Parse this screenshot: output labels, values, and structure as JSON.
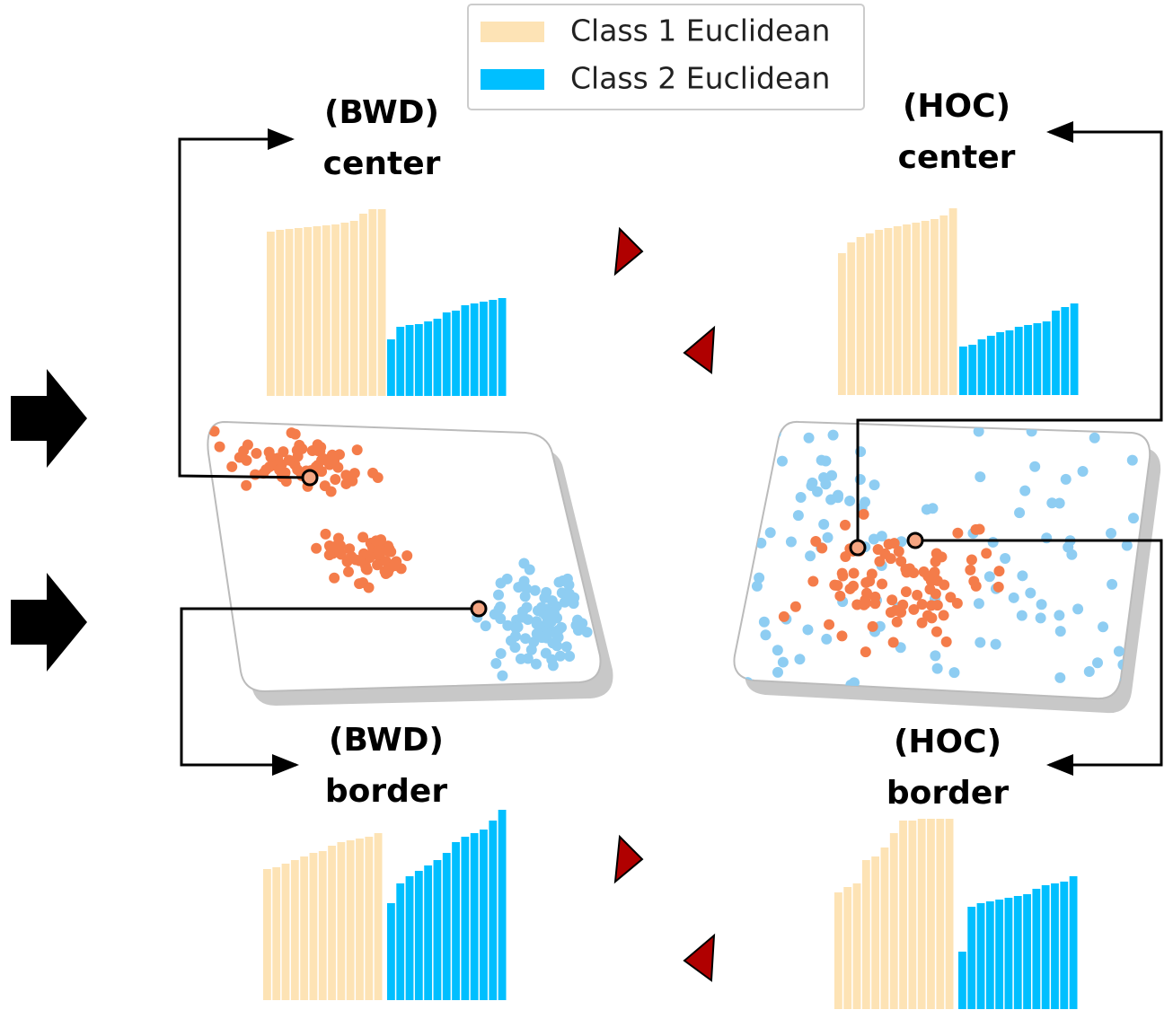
{
  "legend": [
    {
      "label": "Class 1 Euclidean",
      "color": "#fde3b5"
    },
    {
      "label": "Class 2 Euclidean",
      "color": "#00bfff"
    }
  ],
  "panels": [
    {
      "title": "(BWD)",
      "subtitle": "center",
      "class1": [
        183,
        185,
        186,
        187,
        188,
        189,
        190,
        191,
        193,
        195,
        203,
        208,
        208
      ],
      "class2": [
        63,
        77,
        79,
        80,
        83,
        86,
        93,
        95,
        101,
        103,
        105,
        107,
        109
      ]
    },
    {
      "title": "(HOC)",
      "subtitle": "center",
      "class1": [
        158,
        170,
        176,
        180,
        184,
        186,
        188,
        190,
        192,
        194,
        196,
        200,
        208
      ],
      "class2": [
        54,
        56,
        62,
        66,
        70,
        72,
        76,
        78,
        80,
        82,
        94,
        98,
        102
      ]
    },
    {
      "title": "(BWD)",
      "subtitle": "border",
      "class1": [
        146,
        148,
        152,
        156,
        160,
        164,
        166,
        172,
        176,
        178,
        180,
        182,
        186
      ],
      "class2": [
        108,
        130,
        138,
        144,
        150,
        156,
        164,
        176,
        182,
        186,
        190,
        200,
        212
      ]
    },
    {
      "title": "(HOC)",
      "subtitle": "border",
      "class1": [
        130,
        136,
        140,
        166,
        170,
        180,
        196,
        210,
        210,
        212,
        212,
        212,
        212
      ],
      "class2": [
        64,
        114,
        118,
        120,
        122,
        124,
        126,
        128,
        134,
        138,
        140,
        142,
        148
      ]
    }
  ]
}
